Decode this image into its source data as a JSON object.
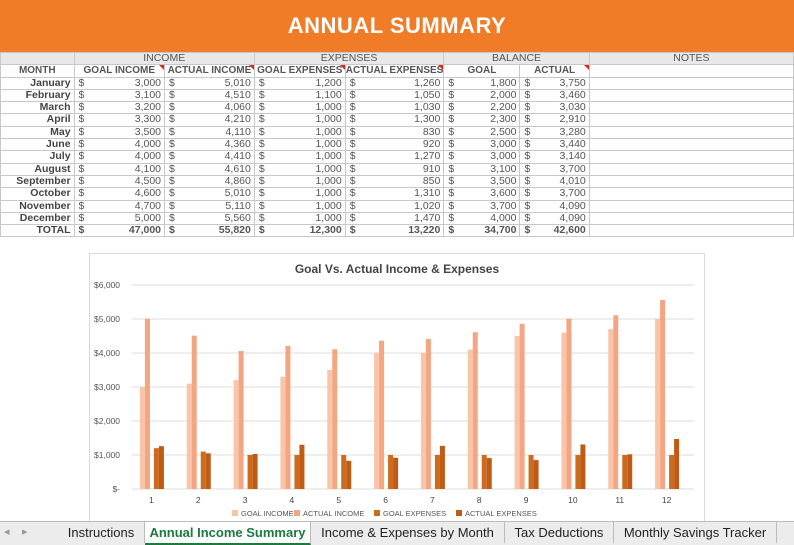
{
  "title": "ANNUAL SUMMARY",
  "groups": {
    "income": "INCOME",
    "expenses": "EXPENSES",
    "balance": "BALANCE",
    "notes": "NOTES"
  },
  "headers": [
    "MONTH",
    "GOAL INCOME",
    "ACTUAL INCOME",
    "GOAL EXPENSES",
    "ACTUAL EXPENSES",
    "GOAL",
    "ACTUAL"
  ],
  "currency": "$",
  "rows": [
    {
      "month": "January",
      "gi": "3,000",
      "ai": "5,010",
      "ge": "1,200",
      "ae": "1,260",
      "gb": "1,800",
      "ab": "3,750"
    },
    {
      "month": "February",
      "gi": "3,100",
      "ai": "4,510",
      "ge": "1,100",
      "ae": "1,050",
      "gb": "2,000",
      "ab": "3,460"
    },
    {
      "month": "March",
      "gi": "3,200",
      "ai": "4,060",
      "ge": "1,000",
      "ae": "1,030",
      "gb": "2,200",
      "ab": "3,030"
    },
    {
      "month": "April",
      "gi": "3,300",
      "ai": "4,210",
      "ge": "1,000",
      "ae": "1,300",
      "gb": "2,300",
      "ab": "2,910"
    },
    {
      "month": "May",
      "gi": "3,500",
      "ai": "4,110",
      "ge": "1,000",
      "ae": "830",
      "gb": "2,500",
      "ab": "3,280"
    },
    {
      "month": "June",
      "gi": "4,000",
      "ai": "4,360",
      "ge": "1,000",
      "ae": "920",
      "gb": "3,000",
      "ab": "3,440"
    },
    {
      "month": "July",
      "gi": "4,000",
      "ai": "4,410",
      "ge": "1,000",
      "ae": "1,270",
      "gb": "3,000",
      "ab": "3,140"
    },
    {
      "month": "August",
      "gi": "4,100",
      "ai": "4,610",
      "ge": "1,000",
      "ae": "910",
      "gb": "3,100",
      "ab": "3,700"
    },
    {
      "month": "September",
      "gi": "4,500",
      "ai": "4,860",
      "ge": "1,000",
      "ae": "850",
      "gb": "3,500",
      "ab": "4,010"
    },
    {
      "month": "October",
      "gi": "4,600",
      "ai": "5,010",
      "ge": "1,000",
      "ae": "1,310",
      "gb": "3,600",
      "ab": "3,700"
    },
    {
      "month": "November",
      "gi": "4,700",
      "ai": "5,110",
      "ge": "1,000",
      "ae": "1,020",
      "gb": "3,700",
      "ab": "4,090"
    },
    {
      "month": "December",
      "gi": "5,000",
      "ai": "5,560",
      "ge": "1,000",
      "ae": "1,470",
      "gb": "4,000",
      "ab": "4,090"
    }
  ],
  "total": {
    "month": "TOTAL",
    "gi": "47,000",
    "ai": "55,820",
    "ge": "12,300",
    "ae": "13,220",
    "gb": "34,700",
    "ab": "42,600"
  },
  "chart_data": {
    "type": "bar",
    "title": "Goal Vs. Actual Income & Expenses",
    "categories": [
      "1",
      "2",
      "3",
      "4",
      "5",
      "6",
      "7",
      "8",
      "9",
      "10",
      "11",
      "12"
    ],
    "ylim": [
      0,
      6000
    ],
    "yticks": [
      "$-",
      "$1,000",
      "$2,000",
      "$3,000",
      "$4,000",
      "$5,000",
      "$6,000"
    ],
    "grid": true,
    "legend": "bottom",
    "series": [
      {
        "name": "GOAL INCOME",
        "color": "#f8c5a8",
        "values": [
          3000,
          3100,
          3200,
          3300,
          3500,
          4000,
          4000,
          4100,
          4500,
          4600,
          4700,
          5000
        ]
      },
      {
        "name": "ACTUAL INCOME",
        "color": "#f4a582",
        "values": [
          5010,
          4510,
          4060,
          4210,
          4110,
          4360,
          4410,
          4610,
          4860,
          5010,
          5110,
          5560
        ]
      },
      {
        "name": "GOAL EXPENSES",
        "color": "#cc6a1e",
        "values": [
          1200,
          1100,
          1000,
          1000,
          1000,
          1000,
          1000,
          1000,
          1000,
          1000,
          1000,
          1000
        ]
      },
      {
        "name": "ACTUAL EXPENSES",
        "color": "#c05a14",
        "values": [
          1260,
          1050,
          1030,
          1300,
          830,
          920,
          1270,
          910,
          850,
          1310,
          1020,
          1470
        ]
      }
    ]
  },
  "tabs": {
    "nav_prev": "◂",
    "nav_next": "▸",
    "items": [
      "Instructions",
      "Annual Income Summary",
      "Income & Expenses by Month",
      "Tax Deductions",
      "Monthly Savings Tracker"
    ],
    "active": 1
  }
}
